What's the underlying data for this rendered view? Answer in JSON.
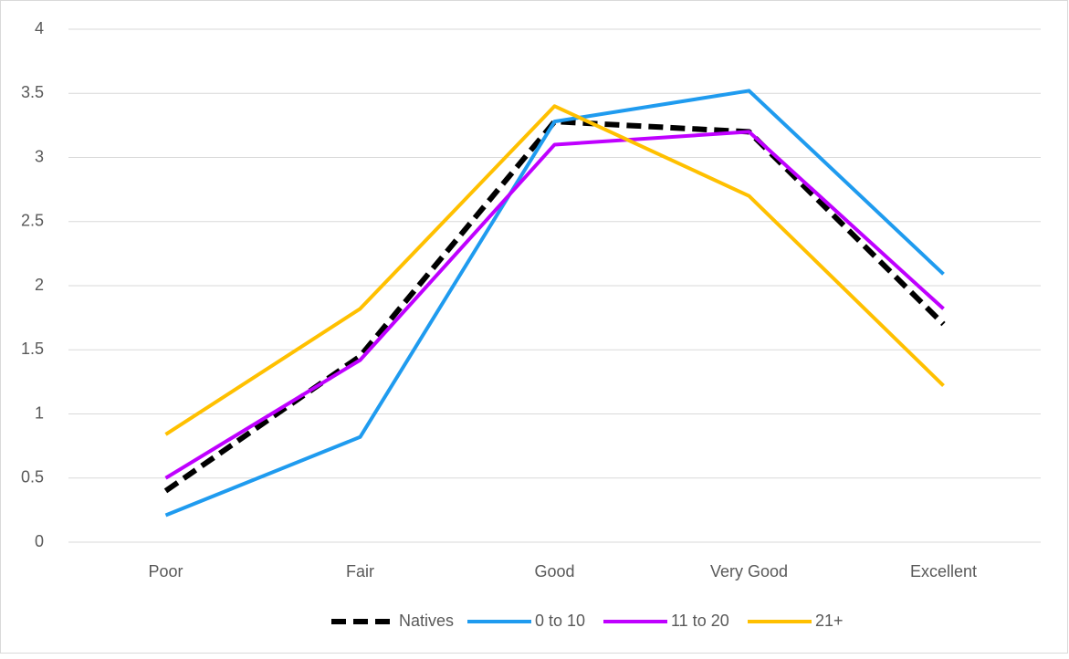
{
  "chart_data": {
    "type": "line",
    "categories": [
      "Poor",
      "Fair",
      "Good",
      "Very Good",
      "Excellent"
    ],
    "series": [
      {
        "name": "Natives",
        "color": "#000000",
        "dashed": true,
        "values": [
          0.4,
          1.45,
          3.28,
          3.2,
          1.7
        ]
      },
      {
        "name": "0 to 10",
        "color": "#1f9bef",
        "dashed": false,
        "values": [
          0.21,
          0.82,
          3.28,
          3.52,
          2.09
        ]
      },
      {
        "name": "11 to 20",
        "color": "#bf00ff",
        "dashed": false,
        "values": [
          0.5,
          1.42,
          3.1,
          3.2,
          1.82
        ]
      },
      {
        "name": "21+",
        "color": "#ffc000",
        "dashed": false,
        "values": [
          0.84,
          1.82,
          3.4,
          2.7,
          1.22
        ]
      }
    ],
    "ylim": [
      0,
      4
    ],
    "yticks": [
      0,
      0.5,
      1,
      1.5,
      2,
      2.5,
      3,
      3.5,
      4
    ],
    "grid": true,
    "legend": "bottom"
  }
}
